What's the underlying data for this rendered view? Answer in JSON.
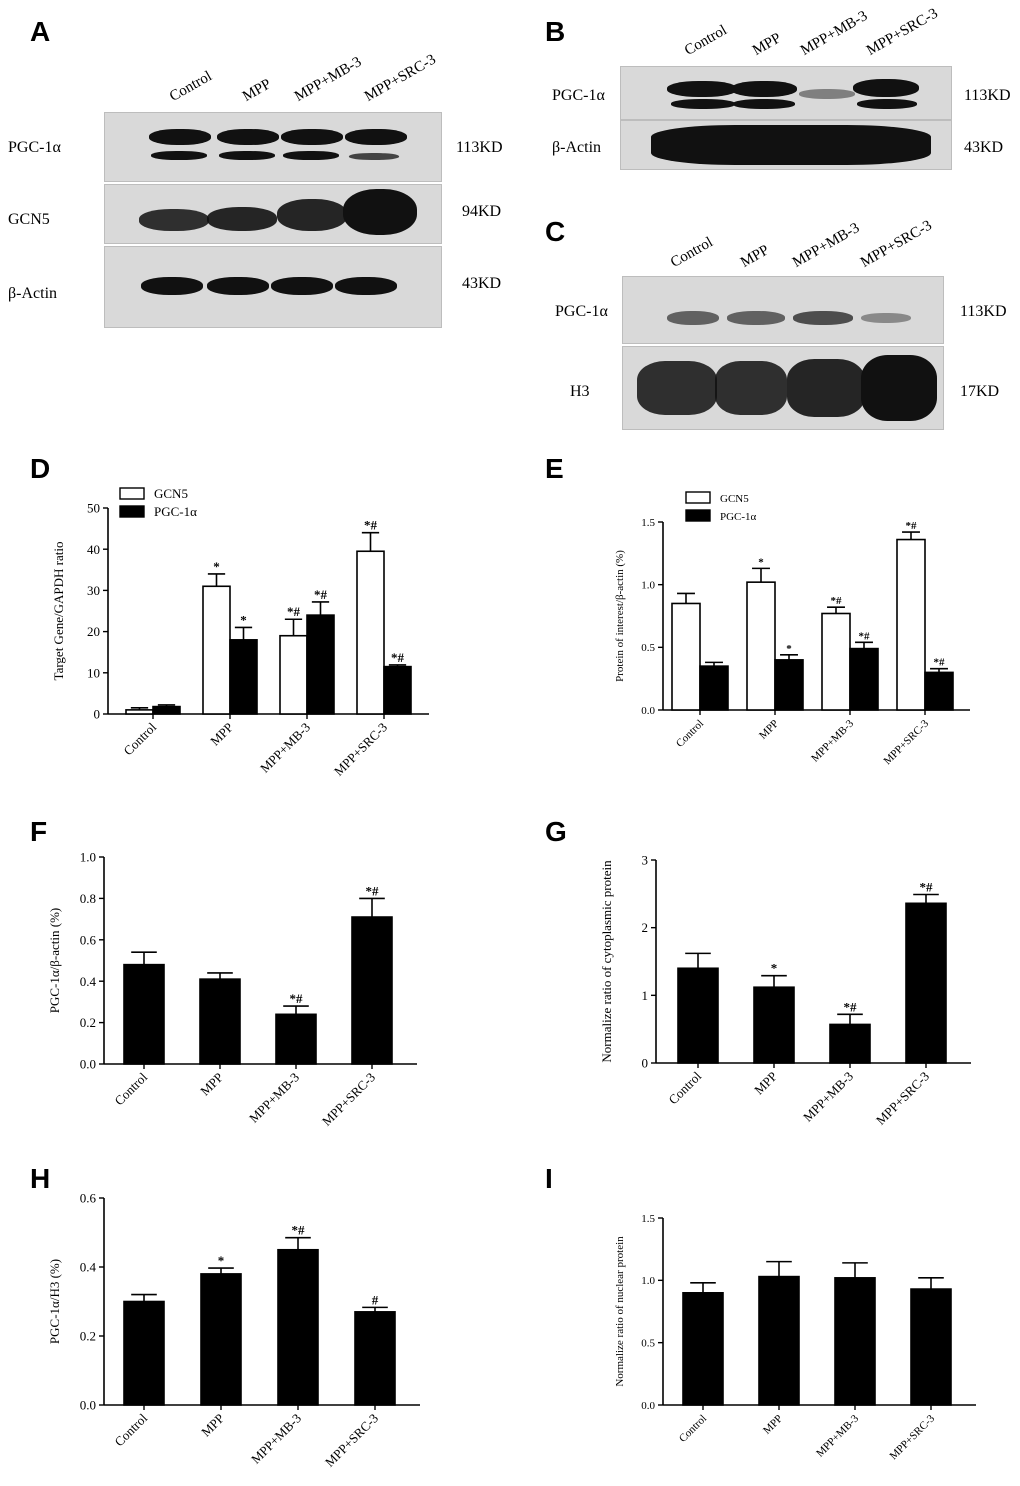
{
  "panels": {
    "a": "A",
    "b": "B",
    "c": "C",
    "d": "D",
    "e": "E",
    "f": "F",
    "g": "G",
    "h": "H",
    "i": "I"
  },
  "blot_a": {
    "lanes": [
      "Control",
      "MPP",
      "MPP+MB-3",
      "MPP+SRC-3"
    ],
    "rows": [
      {
        "label": "PGC-1α",
        "size": "113KD"
      },
      {
        "label": "GCN5",
        "size": "94KD"
      },
      {
        "label": "β-Actin",
        "size": "43KD"
      }
    ]
  },
  "blot_b": {
    "lanes": [
      "Control",
      "MPP",
      "MPP+MB-3",
      "MPP+SRC-3"
    ],
    "rows": [
      {
        "label": "PGC-1α",
        "size": "113KD"
      },
      {
        "label": "β-Actin",
        "size": "43KD"
      }
    ]
  },
  "blot_c": {
    "lanes": [
      "Control",
      "MPP",
      "MPP+MB-3",
      "MPP+SRC-3"
    ],
    "rows": [
      {
        "label": "PGC-1α",
        "size": "113KD"
      },
      {
        "label": "H3",
        "size": "17KD"
      }
    ]
  },
  "colors": {
    "bar_fill": "#000000",
    "open_bar_fill": "#ffffff",
    "axis": "#000000",
    "blot_bg": "#d9d9d9",
    "band": "#111111"
  },
  "chart_data": [
    {
      "id": "D",
      "type": "bar",
      "categories": [
        "Control",
        "MPP",
        "MPP+MB-3",
        "MPP+SRC-3"
      ],
      "ylabel": "Target Gene/GAPDH ratio",
      "ylim": [
        0,
        50
      ],
      "yticks": [
        0,
        10,
        20,
        30,
        40,
        50
      ],
      "legend": "top-left",
      "series": [
        {
          "name": "GCN5",
          "fill": "open",
          "values": [
            1,
            31,
            19,
            39.5
          ],
          "errors": [
            0.5,
            3,
            4,
            4.5
          ],
          "marks": [
            "",
            "*",
            "*#",
            "*#"
          ]
        },
        {
          "name": "PGC-1α",
          "fill": "solid",
          "values": [
            1.8,
            18,
            24,
            11.5
          ],
          "errors": [
            0.4,
            3,
            3.2,
            0.4
          ],
          "marks": [
            "",
            "*",
            "*#",
            "*#"
          ]
        }
      ]
    },
    {
      "id": "E",
      "type": "bar",
      "categories": [
        "Control",
        "MPP",
        "MPP+MB-3",
        "MPP+SRC-3"
      ],
      "ylabel": "Protein of interest/β-actin (%)",
      "ylim": [
        0,
        1.5
      ],
      "yticks": [
        "0.0",
        "0.5",
        "1.0",
        "1.5"
      ],
      "legend": "top-left",
      "series": [
        {
          "name": "GCN5",
          "fill": "open",
          "values": [
            0.85,
            1.02,
            0.77,
            1.36
          ],
          "errors": [
            0.08,
            0.11,
            0.05,
            0.06
          ],
          "marks": [
            "",
            "*",
            "*#",
            "*#"
          ]
        },
        {
          "name": "PGC-1α",
          "fill": "solid",
          "values": [
            0.35,
            0.4,
            0.49,
            0.3
          ],
          "errors": [
            0.03,
            0.04,
            0.05,
            0.03
          ],
          "marks": [
            "",
            "*",
            "*#",
            "*#"
          ]
        }
      ]
    },
    {
      "id": "F",
      "type": "bar",
      "categories": [
        "Control",
        "MPP",
        "MPP+MB-3",
        "MPP+SRC-3"
      ],
      "ylabel": "PGC-1α/β-actin (%)",
      "ylim": [
        0,
        1.0
      ],
      "yticks": [
        "0.0",
        "0.2",
        "0.4",
        "0.6",
        "0.8",
        "1.0"
      ],
      "series": [
        {
          "fill": "solid",
          "values": [
            0.48,
            0.41,
            0.24,
            0.71
          ],
          "errors": [
            0.06,
            0.03,
            0.04,
            0.09
          ],
          "marks": [
            "",
            "",
            "*#",
            "*#"
          ]
        }
      ]
    },
    {
      "id": "G",
      "type": "bar",
      "categories": [
        "Control",
        "MPP",
        "MPP+MB-3",
        "MPP+SRC-3"
      ],
      "ylabel": "Normalize ratio of cytoplasmic protein",
      "ylim": [
        0,
        3
      ],
      "yticks": [
        "0",
        "1",
        "2",
        "3"
      ],
      "series": [
        {
          "fill": "solid",
          "values": [
            1.4,
            1.12,
            0.57,
            2.36
          ],
          "errors": [
            0.22,
            0.17,
            0.15,
            0.13
          ],
          "marks": [
            "",
            "*",
            "*#",
            "*#"
          ]
        }
      ]
    },
    {
      "id": "H",
      "type": "bar",
      "categories": [
        "Control",
        "MPP",
        "MPP+MB-3",
        "MPP+SRC-3"
      ],
      "ylabel": "PGC-1α/H3 (%)",
      "ylim": [
        0,
        0.6
      ],
      "yticks": [
        "0.0",
        "0.2",
        "0.4",
        "0.6"
      ],
      "series": [
        {
          "fill": "solid",
          "values": [
            0.3,
            0.38,
            0.45,
            0.27
          ],
          "errors": [
            0.02,
            0.017,
            0.035,
            0.013
          ],
          "marks": [
            "",
            "*",
            "*#",
            "#"
          ]
        }
      ]
    },
    {
      "id": "I",
      "type": "bar",
      "categories": [
        "Control",
        "MPP",
        "MPP+MB-3",
        "MPP+SRC-3"
      ],
      "ylabel": "Normalize ratio of nuclear protein",
      "ylim": [
        0,
        1.5
      ],
      "yticks": [
        "0.0",
        "0.5",
        "1.0",
        "1.5"
      ],
      "series": [
        {
          "fill": "solid",
          "values": [
            0.9,
            1.03,
            1.02,
            0.93
          ],
          "errors": [
            0.08,
            0.12,
            0.12,
            0.09
          ],
          "marks": [
            "",
            "",
            "",
            ""
          ]
        }
      ]
    }
  ]
}
